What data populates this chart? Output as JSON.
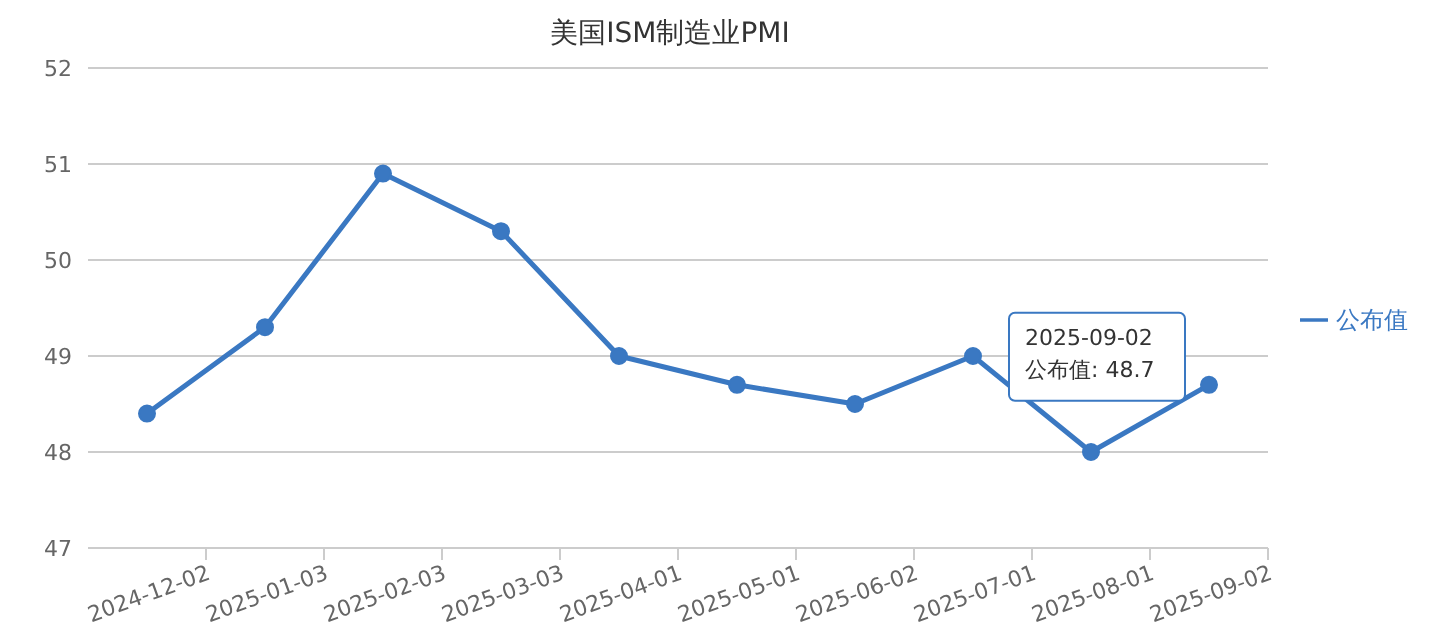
{
  "chart_data": {
    "type": "line",
    "title": "美国ISM制造业PMI",
    "categories": [
      "2024-12-02",
      "2025-01-03",
      "2025-02-03",
      "2025-03-03",
      "2025-04-01",
      "2025-05-01",
      "2025-06-02",
      "2025-07-01",
      "2025-08-01",
      "2025-09-02"
    ],
    "series": [
      {
        "name": "公布值",
        "color": "#3a78c2",
        "values": [
          48.4,
          49.3,
          50.9,
          50.3,
          49.0,
          48.7,
          48.5,
          49.0,
          48.0,
          48.7
        ]
      }
    ],
    "ylim": [
      47,
      52
    ],
    "yticks": [
      47,
      48,
      49,
      50,
      51,
      52
    ],
    "grid": "y",
    "legend": "right",
    "marker": "circle",
    "line_style": "solid",
    "annotations": [
      {
        "text": "2025-09-02\n公布值: 48.7",
        "x": "2025-09-02",
        "y": 48.7
      }
    ]
  }
}
